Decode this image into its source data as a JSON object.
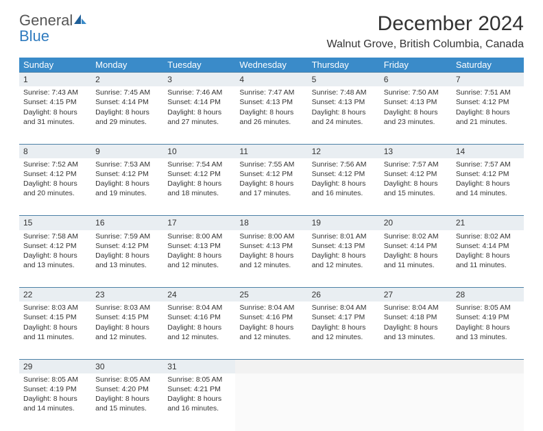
{
  "logo": {
    "line1": "General",
    "line2": "Blue"
  },
  "title": "December 2024",
  "location": "Walnut Grove, British Columbia, Canada",
  "colors": {
    "header_bg": "#3a8bc9",
    "header_text": "#ffffff",
    "daynum_bg": "#e9eef2",
    "daynum_border": "#4a7fa5",
    "logo_gray": "#555555",
    "logo_blue": "#2f7bbf"
  },
  "weekdays": [
    "Sunday",
    "Monday",
    "Tuesday",
    "Wednesday",
    "Thursday",
    "Friday",
    "Saturday"
  ],
  "weeks": [
    {
      "nums": [
        "1",
        "2",
        "3",
        "4",
        "5",
        "6",
        "7"
      ],
      "cells": [
        {
          "sunrise": "Sunrise: 7:43 AM",
          "sunset": "Sunset: 4:15 PM",
          "daylight": "Daylight: 8 hours and 31 minutes."
        },
        {
          "sunrise": "Sunrise: 7:45 AM",
          "sunset": "Sunset: 4:14 PM",
          "daylight": "Daylight: 8 hours and 29 minutes."
        },
        {
          "sunrise": "Sunrise: 7:46 AM",
          "sunset": "Sunset: 4:14 PM",
          "daylight": "Daylight: 8 hours and 27 minutes."
        },
        {
          "sunrise": "Sunrise: 7:47 AM",
          "sunset": "Sunset: 4:13 PM",
          "daylight": "Daylight: 8 hours and 26 minutes."
        },
        {
          "sunrise": "Sunrise: 7:48 AM",
          "sunset": "Sunset: 4:13 PM",
          "daylight": "Daylight: 8 hours and 24 minutes."
        },
        {
          "sunrise": "Sunrise: 7:50 AM",
          "sunset": "Sunset: 4:13 PM",
          "daylight": "Daylight: 8 hours and 23 minutes."
        },
        {
          "sunrise": "Sunrise: 7:51 AM",
          "sunset": "Sunset: 4:12 PM",
          "daylight": "Daylight: 8 hours and 21 minutes."
        }
      ]
    },
    {
      "nums": [
        "8",
        "9",
        "10",
        "11",
        "12",
        "13",
        "14"
      ],
      "cells": [
        {
          "sunrise": "Sunrise: 7:52 AM",
          "sunset": "Sunset: 4:12 PM",
          "daylight": "Daylight: 8 hours and 20 minutes."
        },
        {
          "sunrise": "Sunrise: 7:53 AM",
          "sunset": "Sunset: 4:12 PM",
          "daylight": "Daylight: 8 hours and 19 minutes."
        },
        {
          "sunrise": "Sunrise: 7:54 AM",
          "sunset": "Sunset: 4:12 PM",
          "daylight": "Daylight: 8 hours and 18 minutes."
        },
        {
          "sunrise": "Sunrise: 7:55 AM",
          "sunset": "Sunset: 4:12 PM",
          "daylight": "Daylight: 8 hours and 17 minutes."
        },
        {
          "sunrise": "Sunrise: 7:56 AM",
          "sunset": "Sunset: 4:12 PM",
          "daylight": "Daylight: 8 hours and 16 minutes."
        },
        {
          "sunrise": "Sunrise: 7:57 AM",
          "sunset": "Sunset: 4:12 PM",
          "daylight": "Daylight: 8 hours and 15 minutes."
        },
        {
          "sunrise": "Sunrise: 7:57 AM",
          "sunset": "Sunset: 4:12 PM",
          "daylight": "Daylight: 8 hours and 14 minutes."
        }
      ]
    },
    {
      "nums": [
        "15",
        "16",
        "17",
        "18",
        "19",
        "20",
        "21"
      ],
      "cells": [
        {
          "sunrise": "Sunrise: 7:58 AM",
          "sunset": "Sunset: 4:12 PM",
          "daylight": "Daylight: 8 hours and 13 minutes."
        },
        {
          "sunrise": "Sunrise: 7:59 AM",
          "sunset": "Sunset: 4:12 PM",
          "daylight": "Daylight: 8 hours and 13 minutes."
        },
        {
          "sunrise": "Sunrise: 8:00 AM",
          "sunset": "Sunset: 4:13 PM",
          "daylight": "Daylight: 8 hours and 12 minutes."
        },
        {
          "sunrise": "Sunrise: 8:00 AM",
          "sunset": "Sunset: 4:13 PM",
          "daylight": "Daylight: 8 hours and 12 minutes."
        },
        {
          "sunrise": "Sunrise: 8:01 AM",
          "sunset": "Sunset: 4:13 PM",
          "daylight": "Daylight: 8 hours and 12 minutes."
        },
        {
          "sunrise": "Sunrise: 8:02 AM",
          "sunset": "Sunset: 4:14 PM",
          "daylight": "Daylight: 8 hours and 11 minutes."
        },
        {
          "sunrise": "Sunrise: 8:02 AM",
          "sunset": "Sunset: 4:14 PM",
          "daylight": "Daylight: 8 hours and 11 minutes."
        }
      ]
    },
    {
      "nums": [
        "22",
        "23",
        "24",
        "25",
        "26",
        "27",
        "28"
      ],
      "cells": [
        {
          "sunrise": "Sunrise: 8:03 AM",
          "sunset": "Sunset: 4:15 PM",
          "daylight": "Daylight: 8 hours and 11 minutes."
        },
        {
          "sunrise": "Sunrise: 8:03 AM",
          "sunset": "Sunset: 4:15 PM",
          "daylight": "Daylight: 8 hours and 12 minutes."
        },
        {
          "sunrise": "Sunrise: 8:04 AM",
          "sunset": "Sunset: 4:16 PM",
          "daylight": "Daylight: 8 hours and 12 minutes."
        },
        {
          "sunrise": "Sunrise: 8:04 AM",
          "sunset": "Sunset: 4:16 PM",
          "daylight": "Daylight: 8 hours and 12 minutes."
        },
        {
          "sunrise": "Sunrise: 8:04 AM",
          "sunset": "Sunset: 4:17 PM",
          "daylight": "Daylight: 8 hours and 12 minutes."
        },
        {
          "sunrise": "Sunrise: 8:04 AM",
          "sunset": "Sunset: 4:18 PM",
          "daylight": "Daylight: 8 hours and 13 minutes."
        },
        {
          "sunrise": "Sunrise: 8:05 AM",
          "sunset": "Sunset: 4:19 PM",
          "daylight": "Daylight: 8 hours and 13 minutes."
        }
      ]
    },
    {
      "nums": [
        "29",
        "30",
        "31",
        "",
        "",
        "",
        ""
      ],
      "cells": [
        {
          "sunrise": "Sunrise: 8:05 AM",
          "sunset": "Sunset: 4:19 PM",
          "daylight": "Daylight: 8 hours and 14 minutes."
        },
        {
          "sunrise": "Sunrise: 8:05 AM",
          "sunset": "Sunset: 4:20 PM",
          "daylight": "Daylight: 8 hours and 15 minutes."
        },
        {
          "sunrise": "Sunrise: 8:05 AM",
          "sunset": "Sunset: 4:21 PM",
          "daylight": "Daylight: 8 hours and 16 minutes."
        },
        null,
        null,
        null,
        null
      ]
    }
  ]
}
